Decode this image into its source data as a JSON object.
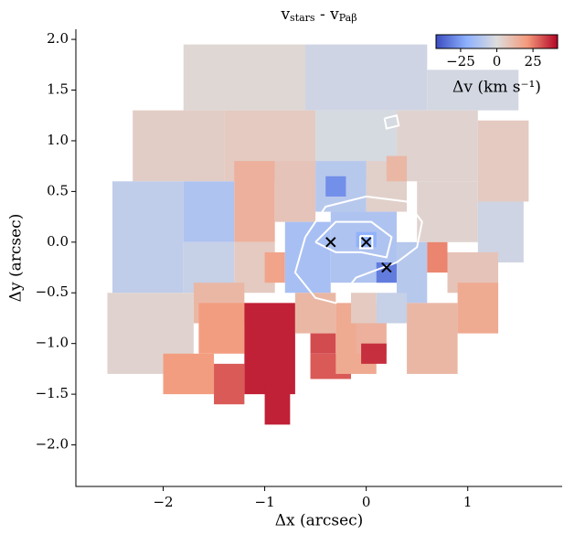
{
  "chart_data": {
    "type": "binned_map",
    "title": [
      "v",
      "stars",
      " - v",
      "Paβ"
    ],
    "x_label": "Δx (arcsec)",
    "y_label": "Δy (arcsec)",
    "xlim": [
      -2.86,
      1.93
    ],
    "ylim": [
      -2.41,
      2.1
    ],
    "xticks": [
      {
        "value": -2,
        "label": "−2"
      },
      {
        "value": -1,
        "label": "−1"
      },
      0,
      1
    ],
    "yticks": [
      {
        "value": 2,
        "label": "2.0"
      },
      {
        "value": 1.5,
        "label": "1.5"
      },
      {
        "value": 1,
        "label": "1.0"
      },
      {
        "value": 0.5,
        "label": "0.5"
      },
      {
        "value": 0,
        "label": "0.0"
      },
      {
        "value": -0.5,
        "label": "−0.5"
      },
      {
        "value": -1,
        "label": "−1.0"
      },
      {
        "value": -1.5,
        "label": "−1.5"
      },
      {
        "value": -2,
        "label": "−2.0"
      }
    ],
    "colorbar": {
      "label": "Δv (km s⁻¹)",
      "lim": [
        -42,
        42
      ],
      "ticks": [
        {
          "value": -25,
          "label": "−25"
        },
        0,
        25
      ],
      "colormap": [
        "#3b4cc0",
        "#8db0fe",
        "#dddddd",
        "#f49a7b",
        "#b40426"
      ]
    },
    "cells": [
      {
        "x": [
          -1.8,
          -0.6
        ],
        "y": [
          1.3,
          1.95
        ],
        "value": 2
      },
      {
        "x": [
          -0.6,
          0.6
        ],
        "y": [
          1.3,
          1.95
        ],
        "value": -4
      },
      {
        "x": [
          0.6,
          1.5
        ],
        "y": [
          1.3,
          1.7
        ],
        "value": -3
      },
      {
        "x": [
          -2.3,
          -1.4
        ],
        "y": [
          0.6,
          1.3
        ],
        "value": 5
      },
      {
        "x": [
          -1.4,
          -0.5
        ],
        "y": [
          0.6,
          1.3
        ],
        "value": 6
      },
      {
        "x": [
          -0.5,
          0.3
        ],
        "y": [
          0.6,
          1.3
        ],
        "value": -2
      },
      {
        "x": [
          0.3,
          1.1
        ],
        "y": [
          0.6,
          1.3
        ],
        "value": 3
      },
      {
        "x": [
          1.1,
          1.6
        ],
        "y": [
          0.4,
          1.2
        ],
        "value": 6
      },
      {
        "x": [
          -2.5,
          -1.8
        ],
        "y": [
          -0.5,
          0.6
        ],
        "value": -8
      },
      {
        "x": [
          -1.8,
          -1.3
        ],
        "y": [
          0.0,
          0.6
        ],
        "value": -12
      },
      {
        "x": [
          -1.3,
          -0.9
        ],
        "y": [
          0.0,
          0.8
        ],
        "value": 14
      },
      {
        "x": [
          -0.9,
          -0.5
        ],
        "y": [
          0.2,
          0.8
        ],
        "value": 8
      },
      {
        "x": [
          -0.5,
          0.0
        ],
        "y": [
          0.3,
          0.8
        ],
        "value": -10
      },
      {
        "x": [
          -0.4,
          -0.2
        ],
        "y": [
          0.45,
          0.65
        ],
        "value": -28
      },
      {
        "x": [
          0.0,
          0.4
        ],
        "y": [
          0.3,
          0.8
        ],
        "value": 4
      },
      {
        "x": [
          0.2,
          0.4
        ],
        "y": [
          0.6,
          0.85
        ],
        "value": 12
      },
      {
        "x": [
          0.5,
          1.1
        ],
        "y": [
          0.0,
          0.6
        ],
        "value": 3
      },
      {
        "x": [
          1.1,
          1.55
        ],
        "y": [
          -0.2,
          0.4
        ],
        "value": -4
      },
      {
        "x": [
          -1.8,
          -1.3
        ],
        "y": [
          -0.5,
          0.0
        ],
        "value": -6
      },
      {
        "x": [
          -1.3,
          -0.9
        ],
        "y": [
          -0.5,
          0.0
        ],
        "value": 6
      },
      {
        "x": [
          -1.0,
          -0.8
        ],
        "y": [
          -0.4,
          -0.1
        ],
        "value": 18
      },
      {
        "x": [
          -0.8,
          -0.35
        ],
        "y": [
          -0.5,
          0.2
        ],
        "value": -14
      },
      {
        "x": [
          -0.35,
          0.3
        ],
        "y": [
          -0.4,
          0.3
        ],
        "value": -12
      },
      {
        "x": [
          -0.1,
          0.1
        ],
        "y": [
          -0.05,
          0.1
        ],
        "value": -20
      },
      {
        "x": [
          0.1,
          0.3
        ],
        "y": [
          -0.4,
          -0.2
        ],
        "value": -32
      },
      {
        "x": [
          0.3,
          0.6
        ],
        "y": [
          -0.6,
          0.0
        ],
        "value": -10
      },
      {
        "x": [
          0.6,
          0.8
        ],
        "y": [
          -0.3,
          0.0
        ],
        "value": 24
      },
      {
        "x": [
          0.8,
          1.3
        ],
        "y": [
          -0.5,
          -0.1
        ],
        "value": 8
      },
      {
        "x": [
          0.9,
          1.3
        ],
        "y": [
          -0.9,
          -0.4
        ],
        "value": 16
      },
      {
        "x": [
          0.4,
          0.9
        ],
        "y": [
          -1.3,
          -0.6
        ],
        "value": 12
      },
      {
        "x": [
          -2.55,
          -1.7
        ],
        "y": [
          -1.3,
          -0.5
        ],
        "value": 3
      },
      {
        "x": [
          -1.7,
          -1.2
        ],
        "y": [
          -0.8,
          -0.4
        ],
        "value": 12
      },
      {
        "x": [
          -1.65,
          -1.2
        ],
        "y": [
          -1.1,
          -0.6
        ],
        "value": 20
      },
      {
        "x": [
          -1.2,
          -0.7
        ],
        "y": [
          -1.5,
          -0.6
        ],
        "value": 38
      },
      {
        "x": [
          -1.0,
          -0.75
        ],
        "y": [
          -1.8,
          -1.4
        ],
        "value": 38
      },
      {
        "x": [
          -0.7,
          -0.3
        ],
        "y": [
          -0.9,
          -0.5
        ],
        "value": 12
      },
      {
        "x": [
          -0.55,
          -0.3
        ],
        "y": [
          -1.1,
          -0.9
        ],
        "value": 32
      },
      {
        "x": [
          -0.55,
          -0.15
        ],
        "y": [
          -1.35,
          -1.1
        ],
        "value": 30
      },
      {
        "x": [
          -2.0,
          -1.5
        ],
        "y": [
          -1.5,
          -1.1
        ],
        "value": 20
      },
      {
        "x": [
          -1.5,
          -1.2
        ],
        "y": [
          -1.6,
          -1.2
        ],
        "value": 30
      },
      {
        "x": [
          -0.3,
          0.1
        ],
        "y": [
          -1.3,
          -0.6
        ],
        "value": 16
      },
      {
        "x": [
          0.1,
          0.4
        ],
        "y": [
          -0.8,
          -0.5
        ],
        "value": -6
      },
      {
        "x": [
          -0.1,
          0.2
        ],
        "y": [
          -1.1,
          -0.8
        ],
        "value": 14
      },
      {
        "x": [
          -0.05,
          0.2
        ],
        "y": [
          -1.2,
          -1.0
        ],
        "value": 36
      },
      {
        "x": [
          -0.15,
          0.1
        ],
        "y": [
          -0.8,
          -0.5
        ],
        "value": 6
      }
    ],
    "contours": [
      {
        "x": [
          -0.6,
          -0.4,
          0.0,
          0.4,
          0.55,
          0.5,
          0.3,
          -0.1,
          -0.3,
          -0.5,
          -0.7,
          -0.6
        ],
        "y": [
          0.05,
          0.35,
          0.45,
          0.4,
          0.2,
          -0.05,
          -0.2,
          -0.35,
          -0.6,
          -0.55,
          -0.3,
          0.05
        ]
      },
      {
        "x": [
          -0.5,
          -0.3,
          0.05,
          0.25,
          0.2,
          -0.05,
          -0.3,
          -0.5
        ],
        "y": [
          0.0,
          0.2,
          0.2,
          0.05,
          -0.15,
          -0.1,
          -0.1,
          0.0
        ]
      },
      {
        "x": [
          -0.06,
          0.06,
          0.06,
          -0.06,
          -0.06
        ],
        "y": [
          0.06,
          0.06,
          -0.06,
          -0.06,
          0.06
        ]
      },
      {
        "x": [
          0.18,
          0.3,
          0.32,
          0.2,
          0.18
        ],
        "y": [
          1.22,
          1.25,
          1.15,
          1.12,
          1.22
        ]
      }
    ],
    "markers": {
      "x": [
        -0.35,
        0.0,
        0.2
      ],
      "y": [
        0.0,
        0.0,
        -0.25
      ]
    }
  }
}
